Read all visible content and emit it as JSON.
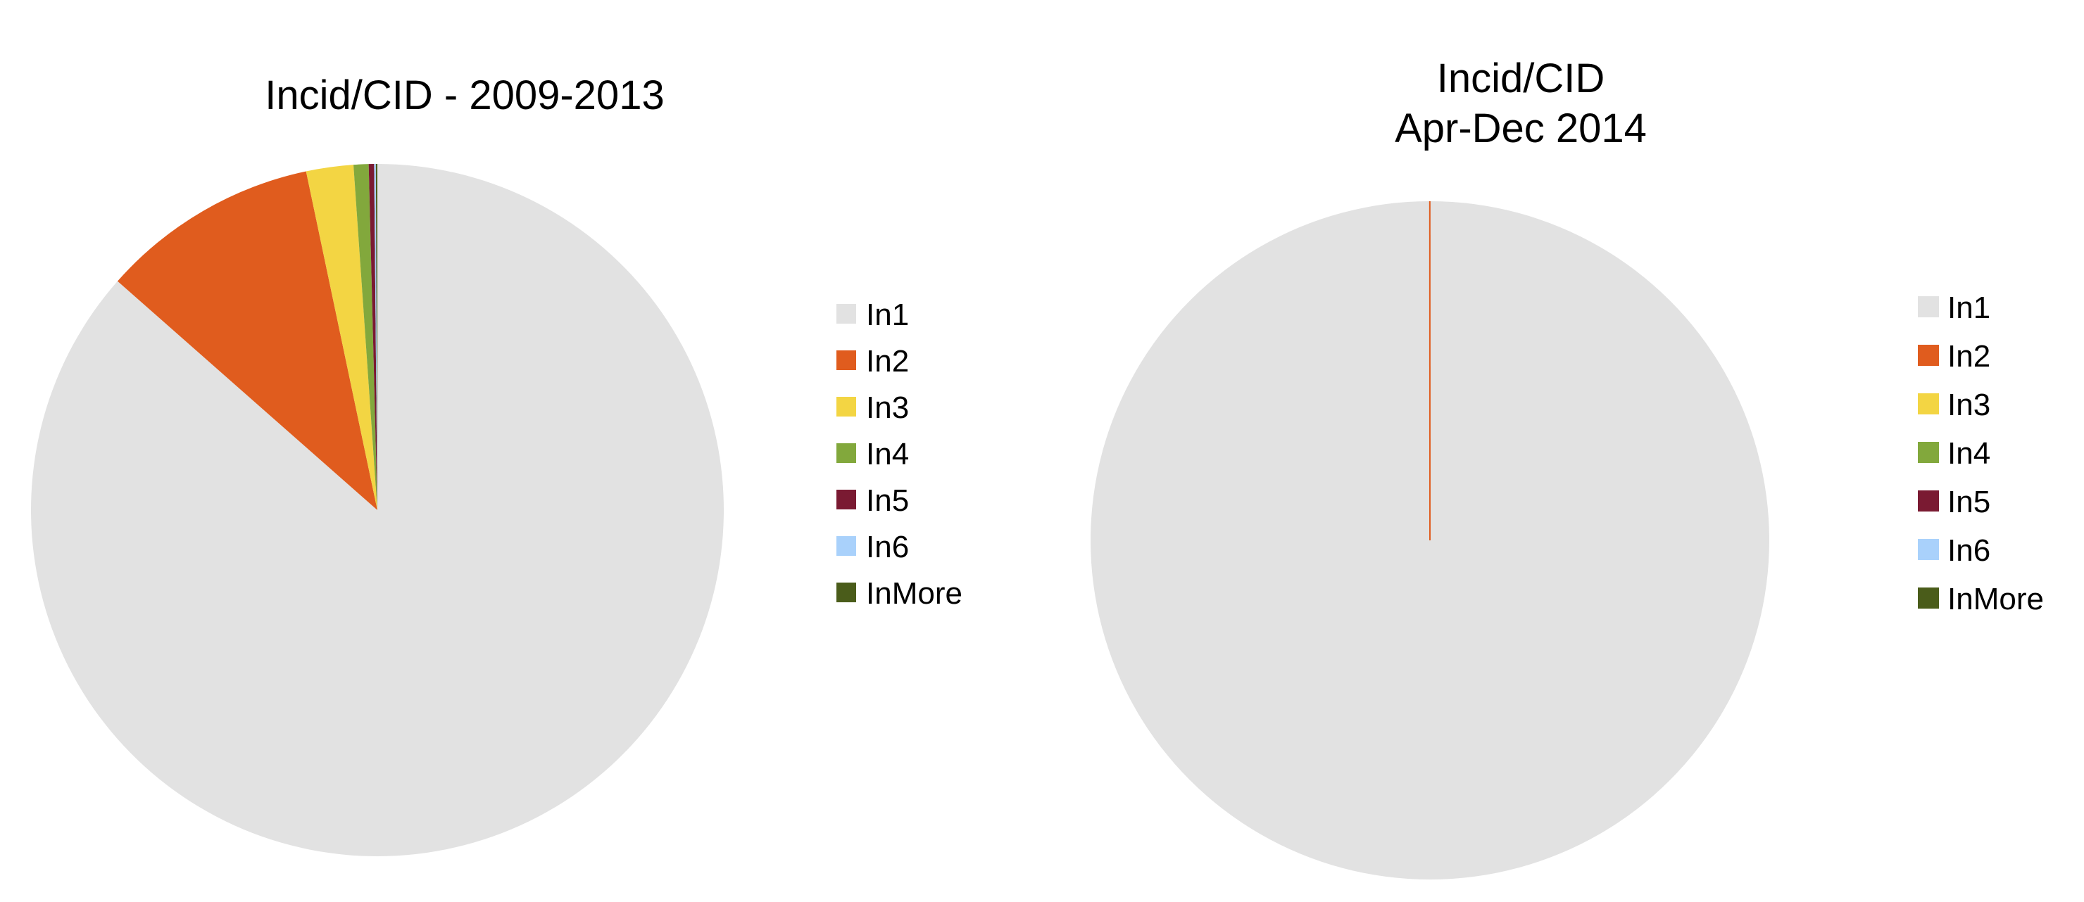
{
  "chart_data": [
    {
      "type": "pie",
      "title": [
        "Incid/CID - 2009-2013"
      ],
      "start_angle_deg": 0,
      "direction": "clockwise",
      "slices": [
        {
          "label": "In1",
          "value": 86.5,
          "color": "#e2e2e2"
        },
        {
          "label": "In2",
          "value": 10.2,
          "color": "#e05c1e"
        },
        {
          "label": "In3",
          "value": 2.2,
          "color": "#f3d543"
        },
        {
          "label": "In4",
          "value": 0.7,
          "color": "#82a83c"
        },
        {
          "label": "In5",
          "value": 0.25,
          "color": "#7a1a32"
        },
        {
          "label": "In6",
          "value": 0.08,
          "color": "#a9d1fb"
        },
        {
          "label": "InMore",
          "value": 0.07,
          "color": "#4a5c1a"
        }
      ],
      "legend": {
        "position": "right",
        "entries": [
          "In1",
          "In2",
          "In3",
          "In4",
          "In5",
          "In6",
          "InMore"
        ]
      }
    },
    {
      "type": "pie",
      "title": [
        "Incid/CID",
        "Apr-Dec 2014"
      ],
      "start_angle_deg": 0,
      "direction": "clockwise",
      "slices": [
        {
          "label": "In1",
          "value": 99.99,
          "color": "#e2e2e2"
        },
        {
          "label": "In2",
          "value": 0.01,
          "color": "#e05c1e"
        },
        {
          "label": "In3",
          "value": 0,
          "color": "#f3d543"
        },
        {
          "label": "In4",
          "value": 0,
          "color": "#82a83c"
        },
        {
          "label": "In5",
          "value": 0,
          "color": "#7a1a32"
        },
        {
          "label": "In6",
          "value": 0,
          "color": "#a9d1fb"
        },
        {
          "label": "InMore",
          "value": 0,
          "color": "#4a5c1a"
        }
      ],
      "legend": {
        "position": "right",
        "entries": [
          "In1",
          "In2",
          "In3",
          "In4",
          "In5",
          "In6",
          "InMore"
        ]
      }
    }
  ]
}
